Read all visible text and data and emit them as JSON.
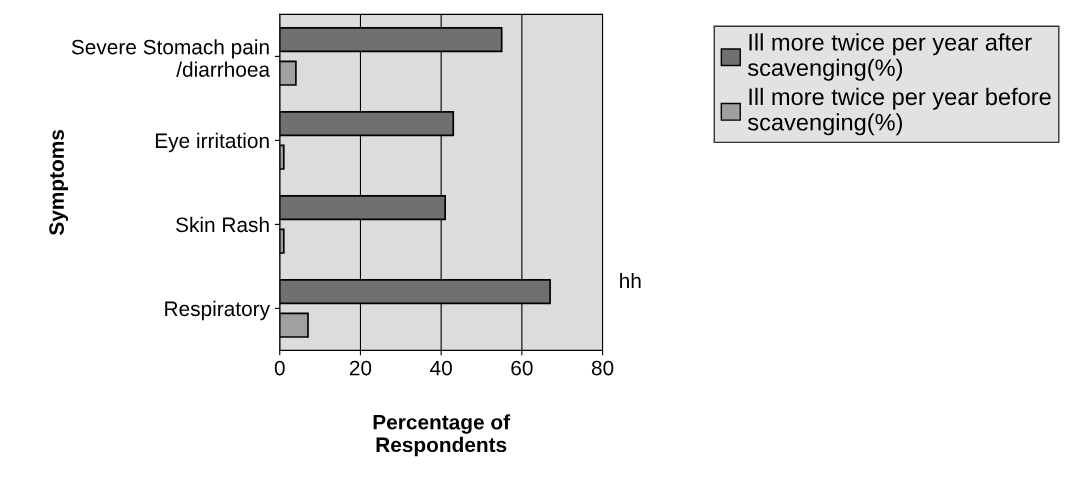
{
  "chart_data": {
    "type": "bar",
    "orientation": "horizontal",
    "xlabel": "Percentage of\nRespondents",
    "ylabel": "Symptoms",
    "categories": [
      "Severe Stomach pain\n/diarrhoea",
      "Eye irritation",
      "Skin Rash",
      "Respiratory"
    ],
    "series": [
      {
        "name": "Ill more twice per year after scavenging(%)",
        "color": "#707070",
        "values": [
          55,
          43,
          41,
          67
        ]
      },
      {
        "name": "Ill more twice per year before scavenging(%)",
        "color": "#a0a0a0",
        "values": [
          4,
          1,
          1,
          7
        ]
      }
    ],
    "xlim": [
      0,
      80
    ],
    "xticks": [
      0,
      20,
      40,
      60,
      80
    ],
    "grid": "x",
    "legend": "top right",
    "annotations": [
      "hh"
    ]
  }
}
